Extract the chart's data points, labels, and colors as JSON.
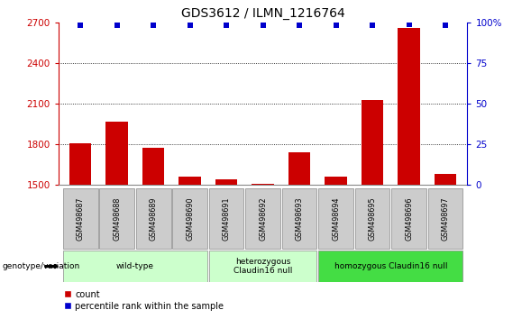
{
  "title": "GDS3612 / ILMN_1216764",
  "samples": [
    "GSM498687",
    "GSM498688",
    "GSM498689",
    "GSM498690",
    "GSM498691",
    "GSM498692",
    "GSM498693",
    "GSM498694",
    "GSM498695",
    "GSM498696",
    "GSM498697"
  ],
  "counts": [
    1810,
    1970,
    1775,
    1560,
    1540,
    1510,
    1740,
    1560,
    2130,
    2660,
    1585
  ],
  "percentile_ranks": [
    98,
    98,
    98,
    98,
    98,
    98,
    98,
    98,
    98,
    99,
    98
  ],
  "ylim_left": [
    1500,
    2700
  ],
  "ylim_right": [
    0,
    100
  ],
  "yticks_left": [
    1500,
    1800,
    2100,
    2400,
    2700
  ],
  "yticks_right": [
    0,
    25,
    50,
    75,
    100
  ],
  "bar_color": "#cc0000",
  "dot_color": "#0000cc",
  "group_spans": [
    {
      "start": 0,
      "end": 3,
      "label": "wild-type",
      "color": "#ccffcc"
    },
    {
      "start": 4,
      "end": 6,
      "label": "heterozygous\nClaudin16 null",
      "color": "#ccffcc"
    },
    {
      "start": 7,
      "end": 10,
      "label": "homozygous Claudin16 null",
      "color": "#44dd44"
    }
  ],
  "legend_items": [
    {
      "color": "#cc0000",
      "label": "count"
    },
    {
      "color": "#0000cc",
      "label": "percentile rank within the sample"
    }
  ],
  "genotype_label": "genotype/variation",
  "box_color": "#cccccc",
  "figsize": [
    5.89,
    3.54
  ],
  "dpi": 100
}
